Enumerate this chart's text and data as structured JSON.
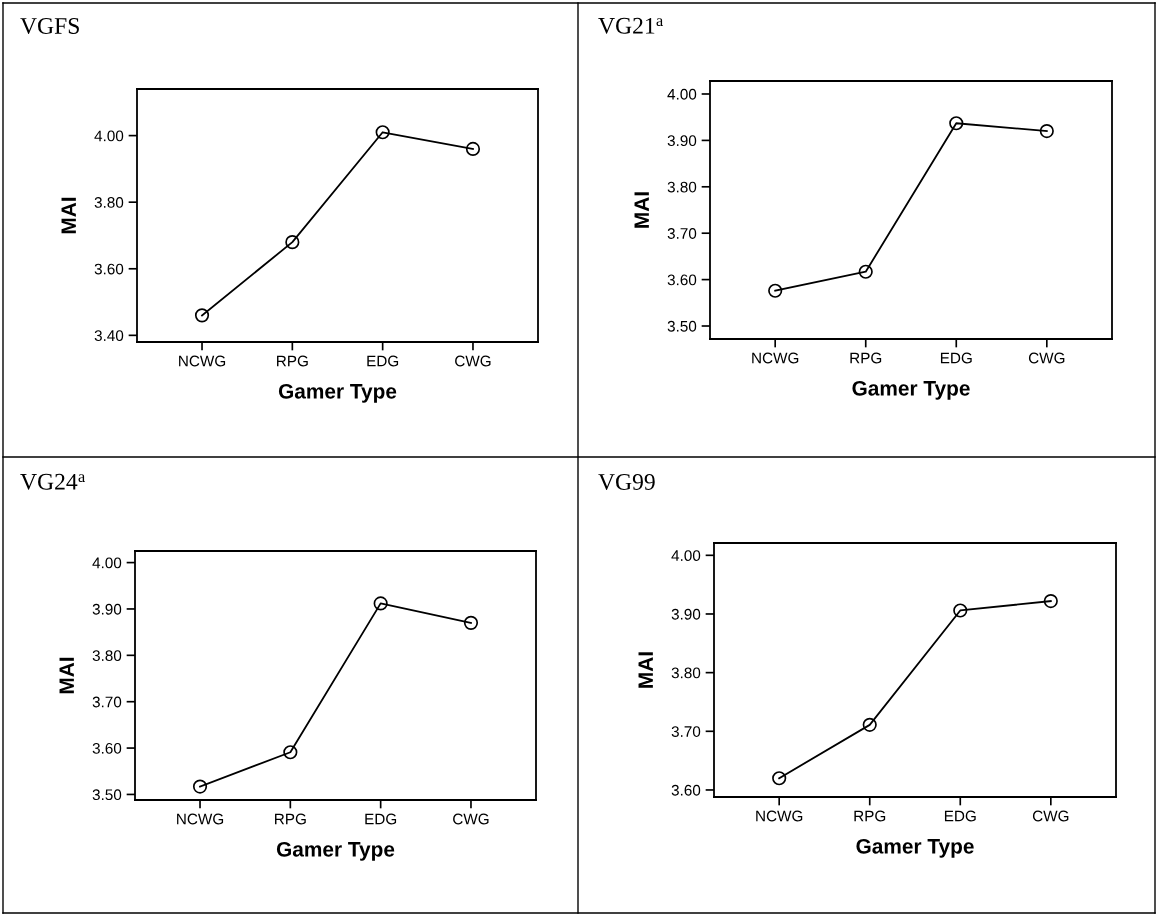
{
  "chart_data": [
    {
      "type": "line",
      "title": "VGFS",
      "xlabel": "Gamer Type",
      "ylabel": "MAI",
      "categories": [
        "NCWG",
        "RPG",
        "EDG",
        "CWG"
      ],
      "series": [
        {
          "color": "#000000",
          "values": [
            3.46,
            3.68,
            4.01,
            3.96
          ]
        }
      ],
      "ylim": [
        3.38,
        4.14
      ],
      "yticks": [
        {
          "value": 3.4,
          "label": "3.40"
        },
        {
          "value": 3.6,
          "label": "3.60"
        },
        {
          "value": 3.8,
          "label": "3.80"
        },
        {
          "value": 4.0,
          "label": "4.00"
        }
      ],
      "marker": "circle"
    },
    {
      "type": "line",
      "title": "VG21$^{a}$",
      "xlabel": "Gamer Type",
      "ylabel": "MAI",
      "categories": [
        "NCWG",
        "RPG",
        "EDG",
        "CWG"
      ],
      "series": [
        {
          "color": "#000000",
          "values": [
            3.576,
            3.617,
            3.937,
            3.92
          ]
        }
      ],
      "ylim": [
        3.472,
        4.028
      ],
      "yticks": [
        {
          "value": 3.5,
          "label": "3.50"
        },
        {
          "value": 3.6,
          "label": "3.60"
        },
        {
          "value": 3.7,
          "label": "3.70"
        },
        {
          "value": 3.8,
          "label": "3.80"
        },
        {
          "value": 3.9,
          "label": "3.90"
        },
        {
          "value": 4.0,
          "label": "4.00"
        }
      ],
      "marker": "circle"
    },
    {
      "type": "line",
      "title": "VG24$^{a}$",
      "xlabel": "Gamer Type",
      "ylabel": "MAI",
      "categories": [
        "NCWG",
        "RPG",
        "EDG",
        "CWG"
      ],
      "series": [
        {
          "color": "#000000",
          "values": [
            3.517,
            3.591,
            3.912,
            3.87
          ]
        }
      ],
      "ylim": [
        3.488,
        4.025
      ],
      "yticks": [
        {
          "value": 3.5,
          "label": "3.50"
        },
        {
          "value": 3.6,
          "label": "3.60"
        },
        {
          "value": 3.7,
          "label": "3.70"
        },
        {
          "value": 3.8,
          "label": "3.80"
        },
        {
          "value": 3.9,
          "label": "3.90"
        },
        {
          "value": 4.0,
          "label": "4.00"
        }
      ],
      "marker": "circle"
    },
    {
      "type": "line",
      "title": "VG99",
      "xlabel": "Gamer Type",
      "ylabel": "MAI",
      "categories": [
        "NCWG",
        "RPG",
        "EDG",
        "CWG"
      ],
      "series": [
        {
          "color": "#000000",
          "values": [
            3.62,
            3.711,
            3.906,
            3.922
          ]
        }
      ],
      "ylim": [
        3.588,
        4.021
      ],
      "yticks": [
        {
          "value": 3.6,
          "label": "3.60"
        },
        {
          "value": 3.7,
          "label": "3.70"
        },
        {
          "value": 3.8,
          "label": "3.80"
        },
        {
          "value": 3.9,
          "label": "3.90"
        },
        {
          "value": 4.0,
          "label": "4.00"
        }
      ],
      "marker": "circle"
    }
  ]
}
